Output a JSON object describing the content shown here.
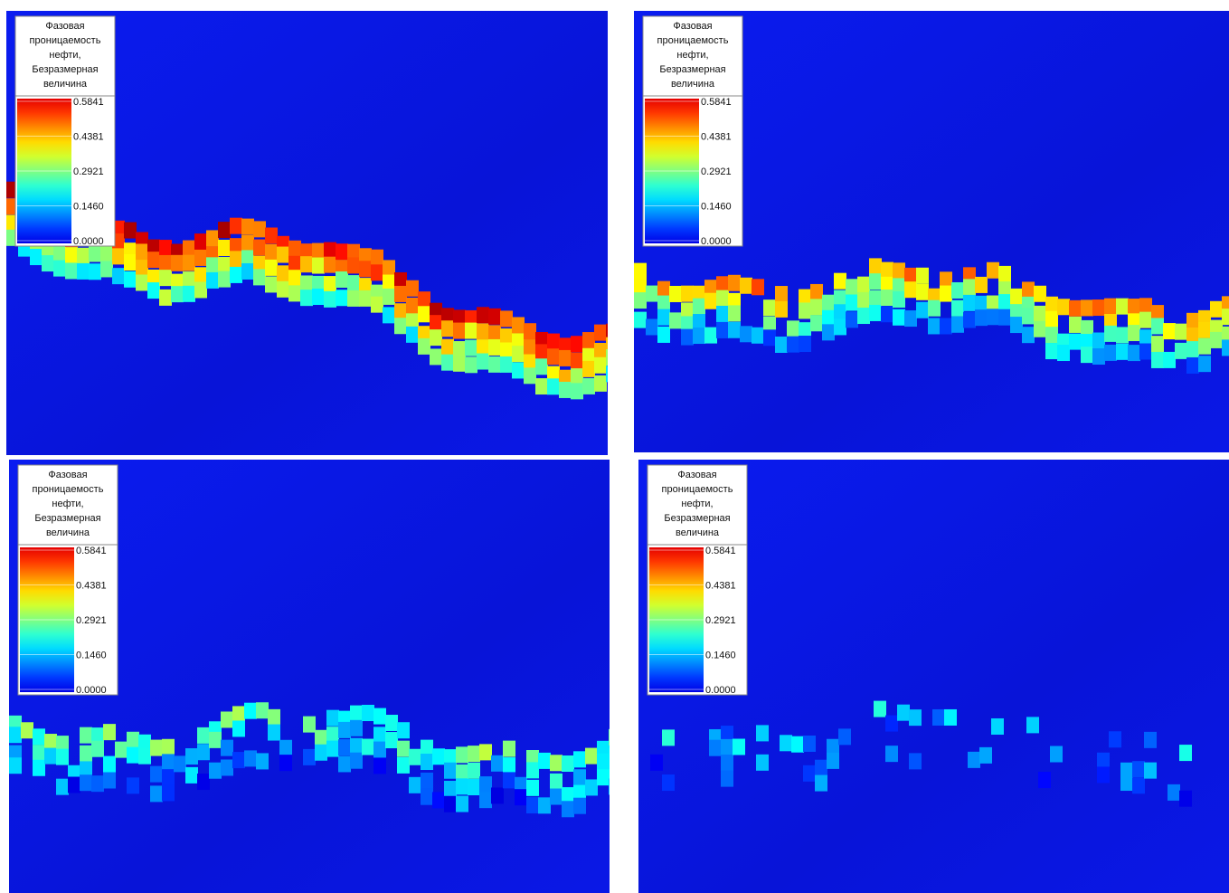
{
  "panels": [
    {
      "legend_title": [
        "Фазовая",
        "проницаемость",
        "нефти,",
        "Безразмерная",
        "величина"
      ],
      "ticks": [
        "0.5841",
        "0.4381",
        "0.2921",
        "0.1460",
        "0.0000"
      ]
    },
    {
      "legend_title": [
        "Фазовая",
        "проницаемость",
        "нефти,",
        "Безразмерная",
        "величина"
      ],
      "ticks": [
        "0.5841",
        "0.4381",
        "0.2921",
        "0.1460",
        "0.0000"
      ]
    },
    {
      "legend_title": [
        "Фазовая",
        "проницаемость",
        "нефти,",
        "Безразмерная",
        "величина"
      ],
      "ticks": [
        "0.5841",
        "0.4381",
        "0.2921",
        "0.1460",
        "0.0000"
      ]
    },
    {
      "legend_title": [
        "Фазовая",
        "проницаемость",
        "нефти,",
        "Безразмерная",
        "величина"
      ],
      "ticks": [
        "0.5841",
        "0.4381",
        "0.2921",
        "0.1460",
        "0.0000"
      ]
    }
  ]
}
